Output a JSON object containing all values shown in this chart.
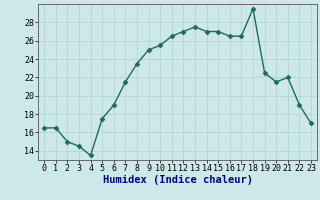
{
  "x": [
    0,
    1,
    2,
    3,
    4,
    5,
    6,
    7,
    8,
    9,
    10,
    11,
    12,
    13,
    14,
    15,
    16,
    17,
    18,
    19,
    20,
    21,
    22,
    23
  ],
  "y": [
    16.5,
    16.5,
    15.0,
    14.5,
    13.5,
    17.5,
    19.0,
    21.5,
    23.5,
    25.0,
    25.5,
    26.5,
    27.0,
    27.5,
    27.0,
    27.0,
    26.5,
    26.5,
    29.5,
    22.5,
    21.5,
    22.0,
    19.0,
    17.0
  ],
  "line_color": "#1f6b5a",
  "marker": "D",
  "marker_size": 2.5,
  "bg_color": "#cce8e8",
  "grid_color": "#b8d8d8",
  "xlabel": "Humidex (Indice chaleur)",
  "xlim": [
    -0.5,
    23.5
  ],
  "ylim": [
    13.0,
    30.0
  ],
  "yticks": [
    14,
    16,
    18,
    20,
    22,
    24,
    26,
    28
  ],
  "tick_fontsize": 6.0,
  "xlabel_fontsize": 7.5,
  "xlabel_color": "#00008b",
  "line_width": 1.0
}
